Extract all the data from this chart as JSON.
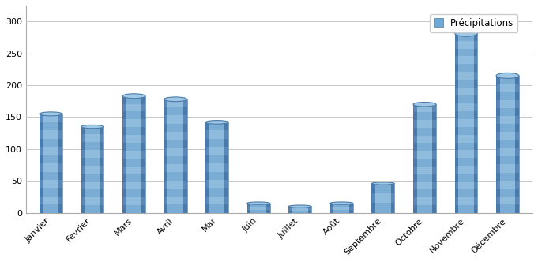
{
  "categories": [
    "Janvier",
    "Février",
    "Mars",
    "Avril",
    "Mai",
    "Juin",
    "Juillet",
    "Août",
    "Septembre",
    "Octobre",
    "Novembre",
    "Décembre"
  ],
  "values": [
    155,
    135,
    183,
    178,
    142,
    15,
    10,
    15,
    46,
    170,
    282,
    215
  ],
  "bar_color_light": "#a8c8e8",
  "bar_color_mid": "#6fa8d4",
  "bar_color_dark": "#4a7eaa",
  "bar_color_edge": "#3a6a96",
  "legend_label": "Précipitations",
  "ylim": [
    0,
    325
  ],
  "yticks": [
    0,
    50,
    100,
    150,
    200,
    250,
    300
  ],
  "grid_color": "#c8c8c8",
  "background_color": "#ffffff",
  "plot_bg_color": "#ffffff",
  "tick_fontsize": 8,
  "legend_fontsize": 8.5,
  "bar_width": 0.55
}
